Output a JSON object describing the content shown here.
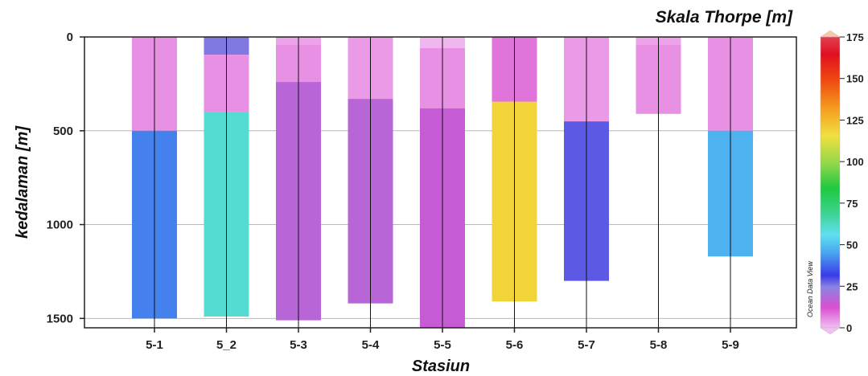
{
  "chart_data": {
    "type": "bar",
    "title": "Skala Thorpe [m]",
    "xlabel": "Stasiun",
    "ylabel": "kedalaman [m]",
    "y_inverted": true,
    "ylim": [
      0,
      1550
    ],
    "yticks": [
      0,
      500,
      1000,
      1500
    ],
    "grid": true,
    "categories": [
      "5-1",
      "5_2",
      "5-3",
      "5-4",
      "5-5",
      "5-6",
      "5-7",
      "5-8",
      "5-9"
    ],
    "stations": [
      {
        "segments": [
          {
            "from": 0,
            "to": 30,
            "value": 5
          },
          {
            "from": 30,
            "to": 500,
            "value": 5
          },
          {
            "from": 500,
            "to": 1500,
            "value": 40
          }
        ]
      },
      {
        "segments": [
          {
            "from": 0,
            "to": 95,
            "value": 25
          },
          {
            "from": 95,
            "to": 400,
            "value": 5
          },
          {
            "from": 400,
            "to": 1490,
            "value": 60
          }
        ]
      },
      {
        "segments": [
          {
            "from": 0,
            "to": 40,
            "value": 3
          },
          {
            "from": 40,
            "to": 240,
            "value": 5
          },
          {
            "from": 240,
            "to": 1510,
            "value": 17
          }
        ]
      },
      {
        "segments": [
          {
            "from": 0,
            "to": 330,
            "value": 4
          },
          {
            "from": 330,
            "to": 1420,
            "value": 17
          }
        ]
      },
      {
        "segments": [
          {
            "from": 0,
            "to": 60,
            "value": 1
          },
          {
            "from": 60,
            "to": 380,
            "value": 5
          },
          {
            "from": 380,
            "to": 1550,
            "value": 15
          }
        ]
      },
      {
        "segments": [
          {
            "from": 0,
            "to": 345,
            "value": 8
          },
          {
            "from": 345,
            "to": 1410,
            "value": 118
          }
        ]
      },
      {
        "segments": [
          {
            "from": 0,
            "to": 450,
            "value": 4
          },
          {
            "from": 450,
            "to": 1300,
            "value": 28
          }
        ]
      },
      {
        "segments": [
          {
            "from": 0,
            "to": 40,
            "value": 3
          },
          {
            "from": 40,
            "to": 410,
            "value": 5
          }
        ]
      },
      {
        "segments": [
          {
            "from": 0,
            "to": 500,
            "value": 5
          },
          {
            "from": 500,
            "to": 1170,
            "value": 47
          }
        ]
      }
    ],
    "colorbar": {
      "label": "Ocean Data View",
      "ticks": [
        0,
        25,
        50,
        75,
        100,
        125,
        150,
        175
      ],
      "range": [
        0,
        175
      ]
    }
  }
}
